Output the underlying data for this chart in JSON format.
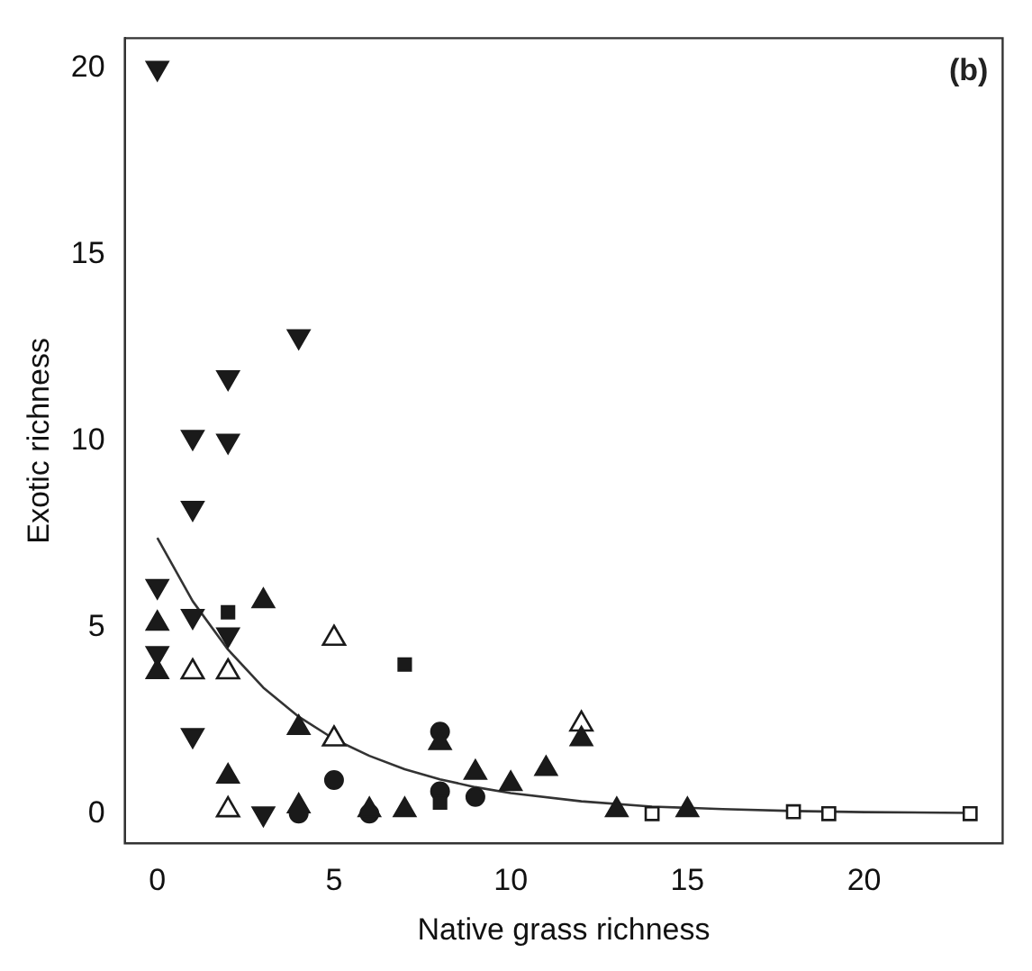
{
  "chart_data": {
    "type": "scatter",
    "xlabel": "Native grass richness",
    "ylabel": "Exotic richness",
    "annotations": [
      "(b)"
    ],
    "xlim": [
      -0.92,
      23.92
    ],
    "ylim": [
      -0.8,
      20.8
    ],
    "xticks": [
      0,
      5,
      10,
      15,
      20
    ],
    "yticks": [
      0,
      5,
      10,
      15,
      20
    ],
    "grid": false,
    "legend": false,
    "series": [
      {
        "marker": "triangle-down",
        "color": "#1a1a1a",
        "x": [
          0,
          1,
          2,
          1,
          2,
          4,
          0,
          1,
          2,
          0,
          1,
          3
        ],
        "values": [
          20,
          10.1,
          10,
          8.2,
          11.7,
          12.8,
          6.1,
          5.3,
          4.8,
          4.3,
          2.1,
          0
        ]
      },
      {
        "marker": "triangle",
        "color": "#1a1a1a",
        "x": [
          0,
          0,
          3,
          2,
          4,
          4,
          6,
          7,
          8,
          9,
          10,
          11,
          12,
          13,
          15
        ],
        "values": [
          5.1,
          3.8,
          5.7,
          1,
          2.3,
          0.2,
          0.1,
          0.1,
          1.9,
          1.1,
          0.8,
          1.2,
          2,
          0.1,
          0.1
        ]
      },
      {
        "marker": "triangle",
        "color": "#ffffff",
        "x": [
          1,
          2,
          5,
          5,
          2,
          12
        ],
        "values": [
          3.8,
          3.8,
          4.7,
          2,
          0.1,
          2.4
        ]
      },
      {
        "marker": "square",
        "color": "#1a1a1a",
        "x": [
          2,
          7,
          8
        ],
        "values": [
          5.4,
          4,
          0.3
        ]
      },
      {
        "marker": "square",
        "color": "#ffffff",
        "x": [
          14,
          18,
          19,
          23
        ],
        "values": [
          0,
          0.05,
          0,
          0
        ]
      },
      {
        "marker": "circle",
        "color": "#1a1a1a",
        "x": [
          5,
          4,
          6,
          8,
          8,
          9
        ],
        "values": [
          0.9,
          0,
          0,
          2.2,
          0.6,
          0.45
        ]
      },
      {
        "type": "line",
        "marker": "none",
        "color": "#333333",
        "x": [
          0,
          1,
          2,
          3,
          4,
          5,
          6,
          7,
          8,
          9,
          10,
          12,
          14,
          16,
          18,
          20,
          23
        ],
        "values": [
          7.4,
          5.7,
          4.4,
          3.38,
          2.6,
          2,
          1.55,
          1.19,
          0.92,
          0.71,
          0.55,
          0.33,
          0.19,
          0.12,
          0.07,
          0.04,
          0.02
        ]
      }
    ]
  }
}
